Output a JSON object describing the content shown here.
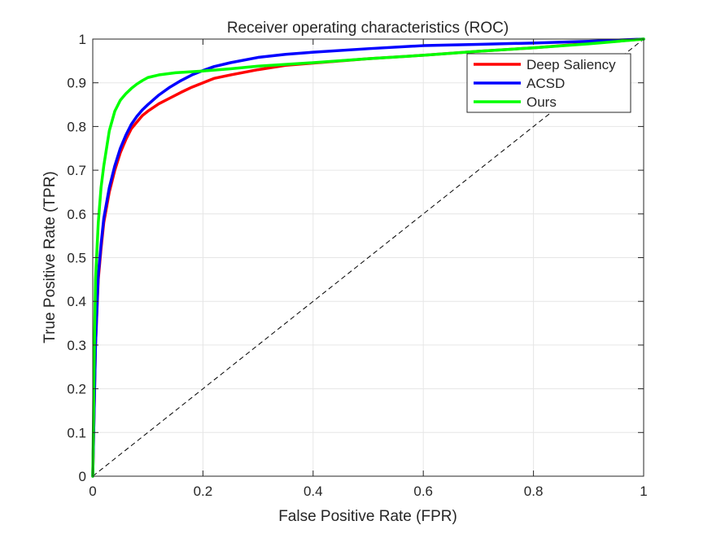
{
  "chart_data": {
    "type": "line",
    "title": "Receiver operating characteristics (ROC)",
    "xlabel": "False Positive Rate (FPR)",
    "ylabel": "True Positive Rate (TPR)",
    "xlim": [
      0,
      1
    ],
    "ylim": [
      0,
      1
    ],
    "x_ticks": [
      0,
      0.2,
      0.4,
      0.6,
      0.8,
      1
    ],
    "x_tick_labels": [
      "0",
      "0.2",
      "0.4",
      "0.6",
      "0.8",
      "1"
    ],
    "y_ticks": [
      0,
      0.1,
      0.2,
      0.3,
      0.4,
      0.5,
      0.6,
      0.7,
      0.8,
      0.9,
      1
    ],
    "y_tick_labels": [
      "0",
      "0.1",
      "0.2",
      "0.3",
      "0.4",
      "0.5",
      "0.6",
      "0.7",
      "0.8",
      "0.9",
      "1"
    ],
    "grid": true,
    "legend_position": "top-right",
    "series": [
      {
        "name": "Deep Saliency",
        "color": "#ff0000",
        "x": [
          0,
          0.005,
          0.01,
          0.015,
          0.02,
          0.03,
          0.04,
          0.05,
          0.06,
          0.07,
          0.08,
          0.09,
          0.1,
          0.12,
          0.14,
          0.16,
          0.18,
          0.2,
          0.22,
          0.25,
          0.3,
          0.35,
          0.4,
          0.5,
          0.6,
          0.7,
          0.8,
          0.9,
          1.0
        ],
        "y": [
          0,
          0.3,
          0.45,
          0.52,
          0.58,
          0.65,
          0.7,
          0.74,
          0.77,
          0.795,
          0.81,
          0.825,
          0.835,
          0.852,
          0.865,
          0.878,
          0.89,
          0.9,
          0.91,
          0.918,
          0.93,
          0.94,
          0.945,
          0.955,
          0.963,
          0.972,
          0.98,
          0.99,
          1.0
        ]
      },
      {
        "name": "ACSD",
        "color": "#0000ff",
        "x": [
          0,
          0.005,
          0.01,
          0.015,
          0.02,
          0.03,
          0.04,
          0.05,
          0.06,
          0.07,
          0.08,
          0.09,
          0.1,
          0.12,
          0.14,
          0.16,
          0.18,
          0.2,
          0.22,
          0.25,
          0.3,
          0.35,
          0.4,
          0.5,
          0.6,
          0.7,
          0.8,
          0.9,
          1.0
        ],
        "y": [
          0,
          0.3,
          0.46,
          0.53,
          0.59,
          0.66,
          0.71,
          0.75,
          0.78,
          0.805,
          0.823,
          0.838,
          0.85,
          0.872,
          0.89,
          0.905,
          0.918,
          0.928,
          0.937,
          0.946,
          0.958,
          0.965,
          0.97,
          0.978,
          0.985,
          0.988,
          0.991,
          0.995,
          1.0
        ]
      },
      {
        "name": "Ours",
        "color": "#00ff00",
        "x": [
          0,
          0.003,
          0.005,
          0.01,
          0.015,
          0.02,
          0.025,
          0.03,
          0.04,
          0.05,
          0.06,
          0.07,
          0.08,
          0.09,
          0.1,
          0.12,
          0.15,
          0.2,
          0.25,
          0.3,
          0.4,
          0.5,
          0.6,
          0.7,
          0.8,
          0.9,
          1.0
        ],
        "y": [
          0,
          0.3,
          0.45,
          0.58,
          0.66,
          0.71,
          0.75,
          0.79,
          0.835,
          0.86,
          0.875,
          0.887,
          0.897,
          0.905,
          0.912,
          0.918,
          0.923,
          0.927,
          0.932,
          0.938,
          0.946,
          0.955,
          0.963,
          0.972,
          0.98,
          0.989,
          1.0
        ]
      }
    ],
    "reference_line": {
      "x": [
        0,
        1
      ],
      "y": [
        0,
        1
      ],
      "color": "#000000",
      "style": "dashed"
    }
  }
}
